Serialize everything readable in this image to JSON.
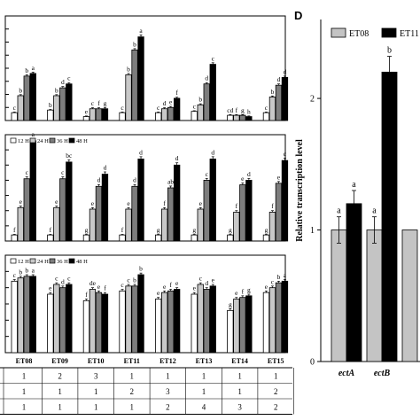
{
  "figure": {
    "panel_d_letter": "D",
    "legend_labels": [
      "12 H",
      "24 H",
      "36 H",
      "48 H"
    ],
    "strain_labels": [
      "ET08",
      "ET09",
      "ET10",
      "ET11",
      "ET12",
      "ET13",
      "ET14",
      "ET15"
    ],
    "table_rows": [
      [
        "1",
        "2",
        "3",
        "1",
        "1",
        "1",
        "1",
        "1"
      ],
      [
        "1",
        "1",
        "1",
        "2",
        "3",
        "1",
        "1",
        "2"
      ],
      [
        "1",
        "1",
        "1",
        "1",
        "2",
        "4",
        "3",
        "2"
      ]
    ],
    "colors": {
      "h12": "#ffffff",
      "h24": "#c8c8c8",
      "h36": "#7d7d7d",
      "h48": "#000000",
      "et08": "#c4c4c4",
      "et11": "#000000",
      "axis": "#000000"
    }
  },
  "chart_data": [
    {
      "panel": "A",
      "type": "bar",
      "categories": [
        "ET08",
        "ET09",
        "ET10",
        "ET11",
        "ET12",
        "ET13",
        "ET14",
        "ET15"
      ],
      "series": [
        {
          "name": "12 H",
          "values": [
            0.6,
            0.8,
            0.3,
            0.6,
            0.6,
            0.7,
            0.4,
            0.6
          ],
          "errors": [
            0.05,
            0.05,
            0.05,
            0.05,
            0.05,
            0.05,
            0.05,
            0.05
          ],
          "labels": [
            "c",
            "b",
            "e",
            "c",
            "c",
            "c",
            "cd",
            "c"
          ]
        },
        {
          "name": "24 H",
          "values": [
            1.9,
            1.9,
            0.9,
            3.5,
            0.9,
            1.2,
            0.4,
            1.8
          ],
          "errors": [
            0.08,
            0.08,
            0.08,
            0.1,
            0.08,
            0.08,
            0.05,
            0.08
          ],
          "labels": [
            "b",
            "b",
            "c",
            "b",
            "d",
            "b",
            "f",
            "b"
          ]
        },
        {
          "name": "36 H",
          "values": [
            3.4,
            2.5,
            0.9,
            5.4,
            1.0,
            2.8,
            0.4,
            2.7
          ],
          "errors": [
            0.1,
            0.1,
            0.08,
            0.1,
            0.08,
            0.1,
            0.05,
            0.1
          ],
          "labels": [
            "b",
            "d",
            "f",
            "b",
            "e",
            "d",
            "g",
            "d"
          ]
        },
        {
          "name": "48 H",
          "values": [
            3.6,
            2.8,
            0.9,
            6.4,
            1.7,
            4.3,
            0.3,
            3.3
          ],
          "errors": [
            0.1,
            0.1,
            0.08,
            0.15,
            0.08,
            0.12,
            0.05,
            0.1
          ],
          "labels": [
            "a",
            "c",
            "g",
            "a",
            "f",
            "c",
            "h",
            "d"
          ]
        }
      ],
      "ylim": [
        0,
        8
      ],
      "legend_position": "none"
    },
    {
      "panel": "B",
      "type": "bar",
      "categories": [
        "ET08",
        "ET09",
        "ET10",
        "ET11",
        "ET12",
        "ET13",
        "ET14",
        "ET15"
      ],
      "series": [
        {
          "name": "12 H",
          "values": [
            0.4,
            0.4,
            0.4,
            0.4,
            0.4,
            0.4,
            0.4,
            0.4
          ],
          "errors": [
            0.04,
            0.04,
            0.04,
            0.04,
            0.04,
            0.04,
            0.04,
            0.04
          ],
          "labels": [
            "f",
            "f",
            "g",
            "f",
            "g",
            "g",
            "g",
            "g"
          ]
        },
        {
          "name": "24 H",
          "values": [
            2.2,
            2.2,
            2.1,
            2.1,
            2.1,
            2.1,
            1.9,
            1.9
          ],
          "errors": [
            0.1,
            0.1,
            0.1,
            0.1,
            0.1,
            0.1,
            0.1,
            0.1
          ],
          "labels": [
            "e",
            "e",
            "e",
            "e",
            "f",
            "e",
            "f",
            "f"
          ]
        },
        {
          "name": "36 H",
          "values": [
            4.1,
            4.1,
            3.6,
            3.6,
            3.5,
            4.0,
            3.7,
            3.8
          ],
          "errors": [
            0.12,
            0.12,
            0.12,
            0.12,
            0.12,
            0.12,
            0.12,
            0.12
          ],
          "labels": [
            "c",
            "c",
            "d",
            "d",
            "ab",
            "c",
            "e",
            "e"
          ]
        },
        {
          "name": "48 H",
          "values": [
            6.6,
            5.2,
            4.4,
            5.4,
            5.0,
            5.4,
            4.0,
            5.3
          ],
          "errors": [
            0.15,
            0.15,
            0.15,
            0.15,
            0.15,
            0.15,
            0.12,
            0.15
          ],
          "labels": [
            "a",
            "bc",
            "d",
            "d",
            "d",
            "d",
            "d",
            "c"
          ]
        }
      ],
      "ylim": [
        0,
        7
      ],
      "legend_position": "top-left"
    },
    {
      "panel": "C",
      "type": "bar",
      "categories": [
        "ET08",
        "ET09",
        "ET10",
        "ET11",
        "ET12",
        "ET13",
        "ET14",
        "ET15"
      ],
      "series": [
        {
          "name": "12 H",
          "values": [
            4.4,
            3.6,
            3.2,
            3.8,
            3.3,
            3.6,
            2.6,
            3.7
          ],
          "errors": [
            0.1,
            0.1,
            0.1,
            0.1,
            0.1,
            0.1,
            0.1,
            0.1
          ],
          "labels": [
            "c",
            "e",
            "f",
            "c",
            "e",
            "e",
            "g",
            "e"
          ]
        },
        {
          "name": "24 H",
          "values": [
            4.6,
            4.2,
            3.9,
            4.1,
            3.7,
            4.2,
            3.3,
            4.0
          ],
          "errors": [
            0.1,
            0.1,
            0.1,
            0.1,
            0.1,
            0.1,
            0.1,
            0.1
          ],
          "labels": [
            "b",
            "c",
            "de",
            "c",
            "e",
            "c",
            "e",
            "c"
          ]
        },
        {
          "name": "36 H",
          "values": [
            4.7,
            4.0,
            3.7,
            4.1,
            3.8,
            3.9,
            3.4,
            4.3
          ],
          "errors": [
            0.1,
            0.1,
            0.1,
            0.1,
            0.1,
            0.1,
            0.1,
            0.1
          ],
          "labels": [
            "b",
            "d",
            "e",
            "b",
            "f",
            "d",
            "f",
            "b"
          ]
        },
        {
          "name": "48 H",
          "values": [
            4.7,
            4.2,
            3.6,
            4.8,
            3.9,
            4.1,
            3.5,
            4.4
          ],
          "errors": [
            0.1,
            0.1,
            0.1,
            0.1,
            0.1,
            0.1,
            0.1,
            0.1
          ],
          "labels": [
            "a",
            "c",
            "f",
            "b",
            "e",
            "e",
            "g",
            "a"
          ]
        }
      ],
      "ylim": [
        0,
        6
      ],
      "legend_position": "top-left"
    },
    {
      "panel": "D",
      "type": "bar",
      "categories": [
        "ectA",
        "ectB",
        ""
      ],
      "series": [
        {
          "name": "ET08",
          "values": [
            1.0,
            1.0,
            1.0
          ],
          "errors": [
            0.1,
            0.1,
            0.0
          ],
          "labels": [
            "a",
            "a",
            ""
          ]
        },
        {
          "name": "ET11",
          "values": [
            1.2,
            2.2,
            null
          ],
          "errors": [
            0.1,
            0.12,
            null
          ],
          "labels": [
            "a",
            "b",
            ""
          ]
        }
      ],
      "ylabel": "Relative transcription level",
      "ylim": [
        0,
        2.6
      ],
      "yticks": [
        0,
        1,
        2
      ],
      "legend_position": "top"
    }
  ]
}
